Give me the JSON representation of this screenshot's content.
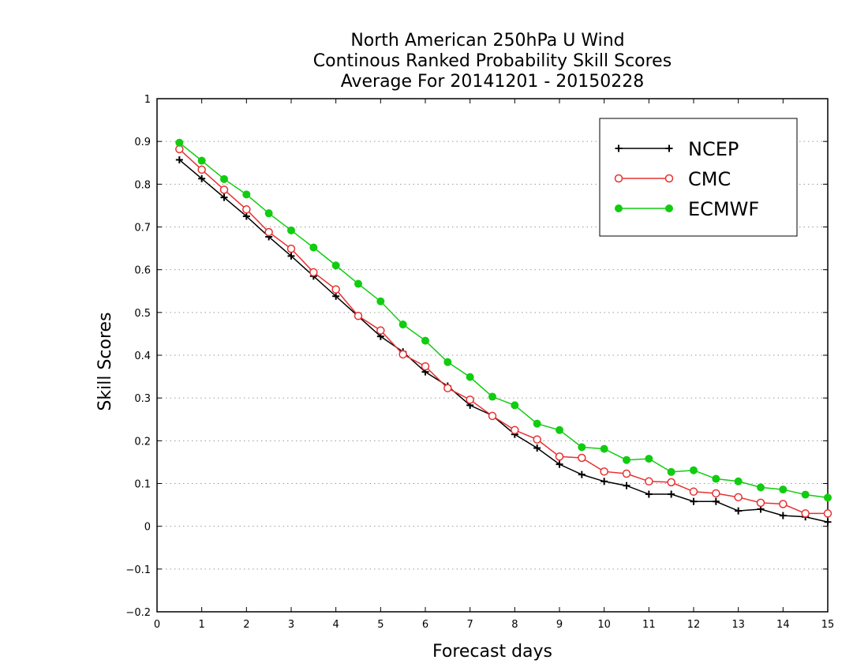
{
  "chart_data": {
    "type": "line",
    "title": [
      "North American 250hPa U Wind",
      "Continous Ranked Probability Skill Scores",
      "Average For 20141201 - 20150228"
    ],
    "xlabel": "Forecast days",
    "ylabel": "Skill Scores",
    "xlim": [
      0,
      15
    ],
    "ylim": [
      -0.2,
      1
    ],
    "xticks": [
      "0",
      "1",
      "2",
      "3",
      "4",
      "5",
      "6",
      "7",
      "8",
      "9",
      "10",
      "11",
      "12",
      "13",
      "14",
      "15"
    ],
    "yticks": [
      "-0.2",
      "-0.1",
      "0",
      "0.1",
      "0.2",
      "0.3",
      "0.4",
      "0.5",
      "0.6",
      "0.7",
      "0.8",
      "0.9",
      "1"
    ],
    "grid": "dotted horizontal",
    "legend": "top-right",
    "x": [
      0.5,
      1,
      1.5,
      2,
      2.5,
      3,
      3.5,
      4,
      4.5,
      5,
      5.5,
      6,
      6.5,
      7,
      7.5,
      8,
      8.5,
      9,
      9.5,
      10,
      10.5,
      11,
      11.5,
      12,
      12.5,
      13,
      13.5,
      14,
      14.5,
      15
    ],
    "series": [
      {
        "name": "NCEP",
        "color": "#000000",
        "marker": "plus",
        "values": [
          0.857,
          0.813,
          0.769,
          0.725,
          0.677,
          0.632,
          0.585,
          0.538,
          0.491,
          0.444,
          0.408,
          0.361,
          0.328,
          0.283,
          0.259,
          0.215,
          0.183,
          0.145,
          0.121,
          0.105,
          0.095,
          0.075,
          0.075,
          0.058,
          0.058,
          0.036,
          0.04,
          0.025,
          0.022,
          0.01
        ]
      },
      {
        "name": "CMC",
        "color": "#e83030",
        "marker": "open-circle",
        "values": [
          0.882,
          0.834,
          0.787,
          0.741,
          0.688,
          0.649,
          0.594,
          0.554,
          0.492,
          0.458,
          0.402,
          0.374,
          0.323,
          0.296,
          0.258,
          0.225,
          0.203,
          0.163,
          0.16,
          0.128,
          0.123,
          0.105,
          0.103,
          0.081,
          0.077,
          0.068,
          0.055,
          0.052,
          0.03,
          0.03
        ]
      },
      {
        "name": "ECMWF",
        "color": "#11cc11",
        "marker": "filled-circle",
        "values": [
          0.897,
          0.855,
          0.812,
          0.776,
          0.732,
          0.692,
          0.652,
          0.61,
          0.567,
          0.526,
          0.472,
          0.434,
          0.384,
          0.349,
          0.303,
          0.283,
          0.24,
          0.225,
          0.185,
          0.181,
          0.155,
          0.158,
          0.127,
          0.131,
          0.111,
          0.105,
          0.091,
          0.086,
          0.074,
          0.067
        ]
      }
    ]
  }
}
